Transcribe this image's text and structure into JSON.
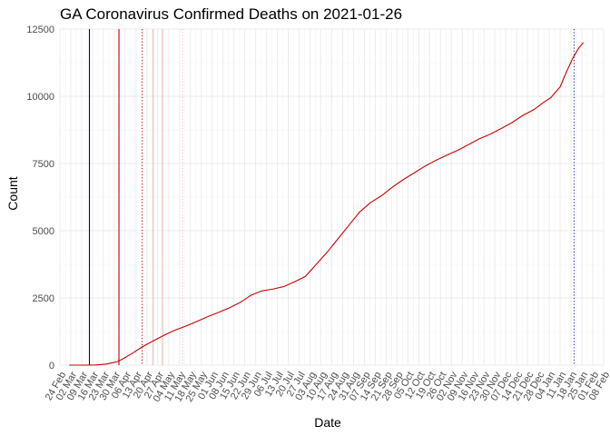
{
  "chart_data": {
    "type": "line",
    "title": "GA Coronavirus Confirmed Deaths on 2021-01-26",
    "xlabel": "Date",
    "ylabel": "Count",
    "xlim": [
      "2020-02-24",
      "2021-02-08"
    ],
    "ylim": [
      0,
      12500
    ],
    "y_ticks": [
      0,
      2500,
      5000,
      7500,
      10000,
      12500
    ],
    "x_tick_labels": [
      "24 Feb",
      "02 Mar",
      "09 Mar",
      "16 Mar",
      "23 Mar",
      "30 Mar",
      "06 Apr",
      "13 Apr",
      "20 Apr",
      "27 Apr",
      "04 May",
      "11 May",
      "18 May",
      "25 May",
      "01 Jun",
      "08 Jun",
      "15 Jun",
      "22 Jun",
      "29 Jun",
      "06 Jul",
      "13 Jul",
      "20 Jul",
      "27 Jul",
      "03 Aug",
      "10 Aug",
      "17 Aug",
      "24 Aug",
      "31 Aug",
      "07 Sep",
      "14 Sep",
      "21 Sep",
      "28 Sep",
      "05 Oct",
      "12 Oct",
      "19 Oct",
      "26 Oct",
      "02 Nov",
      "09 Nov",
      "16 Nov",
      "23 Nov",
      "30 Nov",
      "07 Dec",
      "14 Dec",
      "21 Dec",
      "28 Dec",
      "04 Jan",
      "11 Jan",
      "18 Jan",
      "25 Jan",
      "01 Feb",
      "08 Feb"
    ],
    "grid": true,
    "series": [
      {
        "color": "#cc0000",
        "points": [
          [
            "2020-03-01",
            0
          ],
          [
            "2020-03-10",
            0
          ],
          [
            "2020-03-18",
            5
          ],
          [
            "2020-03-25",
            40
          ],
          [
            "2020-04-01",
            130
          ],
          [
            "2020-04-05",
            250
          ],
          [
            "2020-04-10",
            420
          ],
          [
            "2020-04-17",
            680
          ],
          [
            "2020-04-24",
            900
          ],
          [
            "2020-05-01",
            1110
          ],
          [
            "2020-05-08",
            1300
          ],
          [
            "2020-05-15",
            1450
          ],
          [
            "2020-05-22",
            1620
          ],
          [
            "2020-05-29",
            1800
          ],
          [
            "2020-06-05",
            1960
          ],
          [
            "2020-06-12",
            2130
          ],
          [
            "2020-06-19",
            2330
          ],
          [
            "2020-06-26",
            2600
          ],
          [
            "2020-07-03",
            2760
          ],
          [
            "2020-07-10",
            2830
          ],
          [
            "2020-07-17",
            2920
          ],
          [
            "2020-07-24",
            3100
          ],
          [
            "2020-07-31",
            3300
          ],
          [
            "2020-08-07",
            3750
          ],
          [
            "2020-08-14",
            4200
          ],
          [
            "2020-08-21",
            4700
          ],
          [
            "2020-08-28",
            5200
          ],
          [
            "2020-09-04",
            5700
          ],
          [
            "2020-09-11",
            6050
          ],
          [
            "2020-09-18",
            6300
          ],
          [
            "2020-09-25",
            6620
          ],
          [
            "2020-10-02",
            6900
          ],
          [
            "2020-10-09",
            7150
          ],
          [
            "2020-10-16",
            7400
          ],
          [
            "2020-10-23",
            7620
          ],
          [
            "2020-10-30",
            7810
          ],
          [
            "2020-11-06",
            7990
          ],
          [
            "2020-11-13",
            8200
          ],
          [
            "2020-11-20",
            8420
          ],
          [
            "2020-11-27",
            8590
          ],
          [
            "2020-12-04",
            8800
          ],
          [
            "2020-12-11",
            9020
          ],
          [
            "2020-12-18",
            9290
          ],
          [
            "2020-12-25",
            9500
          ],
          [
            "2021-01-01",
            9800
          ],
          [
            "2021-01-05",
            9950
          ],
          [
            "2021-01-11",
            10350
          ],
          [
            "2021-01-15",
            10900
          ],
          [
            "2021-01-19",
            11400
          ],
          [
            "2021-01-23",
            11800
          ],
          [
            "2021-01-26",
            12000
          ]
        ]
      }
    ],
    "reference_lines": [
      {
        "date": "2020-03-14",
        "color": "#000066",
        "style": "solid"
      },
      {
        "date": "2020-04-02",
        "color": "#cc0000",
        "style": "solid"
      },
      {
        "date": "2020-04-17",
        "color": "#cc0000",
        "style": "dotted"
      },
      {
        "date": "2020-04-24",
        "color": "#f4b8b8",
        "style": "solid"
      },
      {
        "date": "2020-04-30",
        "color": "#f4b8b8",
        "style": "solid"
      },
      {
        "date": "2020-05-13",
        "color": "#f4b8b8",
        "style": "dotted"
      },
      {
        "date": "2021-01-20",
        "color": "#2222cc",
        "style": "dotted"
      }
    ]
  }
}
